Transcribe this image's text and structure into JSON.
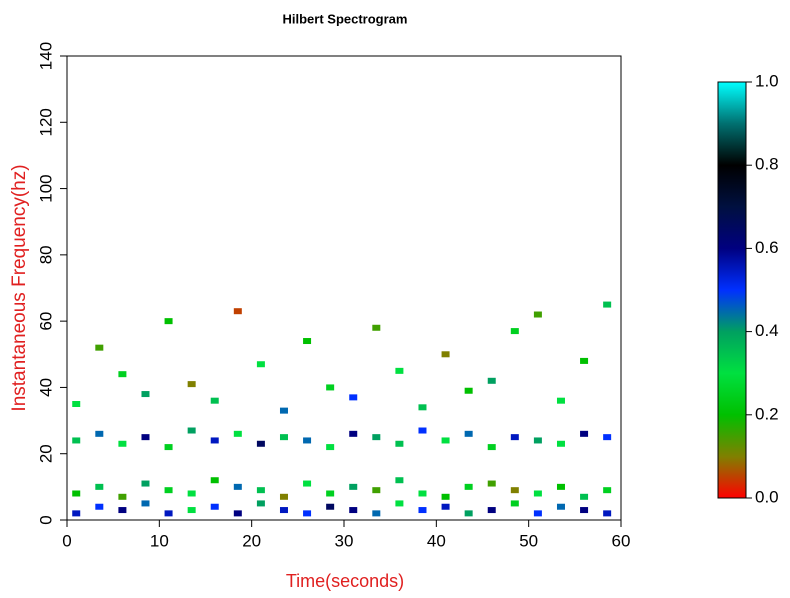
{
  "chart_data": {
    "type": "spectrogram",
    "title": "Hilbert Spectrogram",
    "x_label": "Time(seconds)",
    "y_label": "Instantaneous Frequency(hz)",
    "xlim": [
      0,
      60
    ],
    "ylim": [
      0,
      140
    ],
    "xticks": [
      0,
      10,
      20,
      30,
      40,
      50,
      60
    ],
    "yticks": [
      0,
      20,
      40,
      60,
      80,
      100,
      120,
      140
    ],
    "colorscale": [
      "#ff0000",
      "#808000",
      "#00c000",
      "#00e040",
      "#00a060",
      "#0030ff",
      "#000080",
      "#001040",
      "#000000",
      "#007070",
      "#00ffff"
    ],
    "zlim": [
      0,
      1
    ],
    "zticks": [
      {
        "value": 0,
        "label": "0.0"
      },
      {
        "value": 0.2,
        "label": "0.2"
      },
      {
        "value": 0.4,
        "label": "0.4"
      },
      {
        "value": 0.6,
        "label": "0.6"
      },
      {
        "value": 0.8,
        "label": "0.8"
      },
      {
        "value": 1,
        "label": "1.0"
      }
    ],
    "x": [
      1,
      3.5,
      6,
      8.5,
      11,
      13.5,
      16,
      18.5,
      21,
      23.5,
      26,
      28.5,
      31,
      33.5,
      36,
      38.5,
      41,
      43.5,
      46,
      48.5,
      51,
      53.5,
      56,
      58.5,
      1,
      3.5,
      6,
      8.5,
      11,
      13.5,
      16,
      18.5,
      21,
      23.5,
      26,
      28.5,
      31,
      33.5,
      36,
      38.5,
      41,
      43.5,
      46,
      48.5,
      51,
      53.5,
      56,
      58.5,
      1,
      3.5,
      6,
      8.5,
      11,
      13.5,
      16,
      18.5,
      21,
      23.5,
      26,
      28.5,
      31,
      33.5,
      36,
      38.5,
      41,
      43.5,
      46,
      48.5,
      51,
      53.5,
      56,
      58.5,
      1,
      3.5,
      6,
      8.5,
      11,
      13.5,
      16,
      18.5,
      21,
      23.5,
      26,
      28.5,
      31,
      33.5,
      36,
      38.5,
      41,
      43.5,
      46,
      48.5,
      51,
      53.5,
      56,
      58.5
    ],
    "y": [
      2,
      4,
      3,
      5,
      2,
      3,
      4,
      2,
      5,
      3,
      2,
      4,
      3,
      2,
      5,
      3,
      4,
      2,
      3,
      5,
      2,
      4,
      3,
      2,
      8,
      10,
      7,
      11,
      9,
      8,
      12,
      10,
      9,
      7,
      11,
      8,
      10,
      9,
      12,
      8,
      7,
      10,
      11,
      9,
      8,
      10,
      7,
      9,
      24,
      26,
      23,
      25,
      22,
      27,
      24,
      26,
      23,
      25,
      24,
      22,
      26,
      25,
      23,
      27,
      24,
      26,
      22,
      25,
      24,
      23,
      26,
      25,
      35,
      52,
      44,
      38,
      60,
      41,
      36,
      63,
      47,
      33,
      54,
      40,
      37,
      58,
      45,
      34,
      50,
      39,
      42,
      57,
      62,
      36,
      48,
      65
    ],
    "z": [
      0.55,
      0.5,
      0.6,
      0.45,
      0.55,
      0.3,
      0.5,
      0.6,
      0.4,
      0.55,
      0.5,
      0.65,
      0.6,
      0.45,
      0.3,
      0.5,
      0.55,
      0.4,
      0.6,
      0.25,
      0.5,
      0.45,
      0.6,
      0.55,
      0.2,
      0.35,
      0.15,
      0.4,
      0.25,
      0.3,
      0.2,
      0.45,
      0.35,
      0.1,
      0.3,
      0.25,
      0.4,
      0.15,
      0.35,
      0.3,
      0.2,
      0.25,
      0.15,
      0.1,
      0.3,
      0.2,
      0.35,
      0.25,
      0.35,
      0.45,
      0.3,
      0.6,
      0.25,
      0.4,
      0.55,
      0.3,
      0.65,
      0.35,
      0.45,
      0.3,
      0.6,
      0.4,
      0.35,
      0.5,
      0.3,
      0.45,
      0.25,
      0.55,
      0.4,
      0.3,
      0.6,
      0.5,
      0.3,
      0.15,
      0.25,
      0.4,
      0.2,
      0.1,
      0.35,
      0.05,
      0.3,
      0.45,
      0.2,
      0.25,
      0.5,
      0.15,
      0.3,
      0.35,
      0.1,
      0.2,
      0.4,
      0.25,
      0.15,
      0.3,
      0.2,
      0.35
    ]
  }
}
